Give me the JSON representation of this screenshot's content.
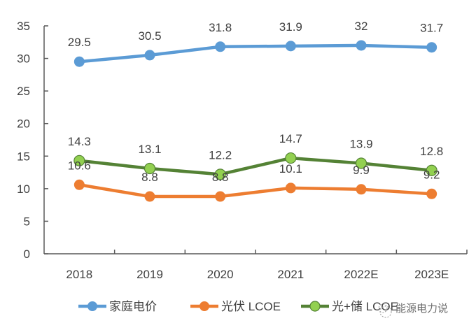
{
  "chart_data": {
    "type": "line",
    "title": "",
    "xlabel": "",
    "ylabel": "",
    "categories": [
      "2018",
      "2019",
      "2020",
      "2021",
      "2022E",
      "2023E"
    ],
    "ylim": [
      0,
      35
    ],
    "yticks": [
      0,
      5,
      10,
      15,
      20,
      25,
      30,
      35
    ],
    "grid": false,
    "legend_position": "bottom",
    "series": [
      {
        "name": "家庭电价",
        "values": [
          29.5,
          30.5,
          31.8,
          31.9,
          32,
          31.7
        ],
        "labels": [
          "29.5",
          "30.5",
          "31.8",
          "31.9",
          "32",
          "31.7"
        ],
        "color": "#5b9bd5",
        "marker_fill": "#5b9bd5",
        "label_position": "above"
      },
      {
        "name": "光伏 LCOE",
        "values": [
          10.6,
          8.8,
          8.8,
          10.1,
          9.9,
          9.2
        ],
        "labels": [
          "10.6",
          "8.8",
          "8.8",
          "10.1",
          "9.9",
          "9.2"
        ],
        "color": "#ed7d31",
        "marker_fill": "#ed7d31",
        "label_position": "above"
      },
      {
        "name": "光+储 LCOE",
        "values": [
          14.3,
          13.1,
          12.2,
          14.7,
          13.9,
          12.8
        ],
        "labels": [
          "14.3",
          "13.1",
          "12.2",
          "14.7",
          "13.9",
          "12.8"
        ],
        "color": "#548235",
        "marker_fill": "#92d050",
        "label_position": "above"
      }
    ]
  },
  "watermark": {
    "text": "能源电力说",
    "icon": "wechat-icon"
  }
}
